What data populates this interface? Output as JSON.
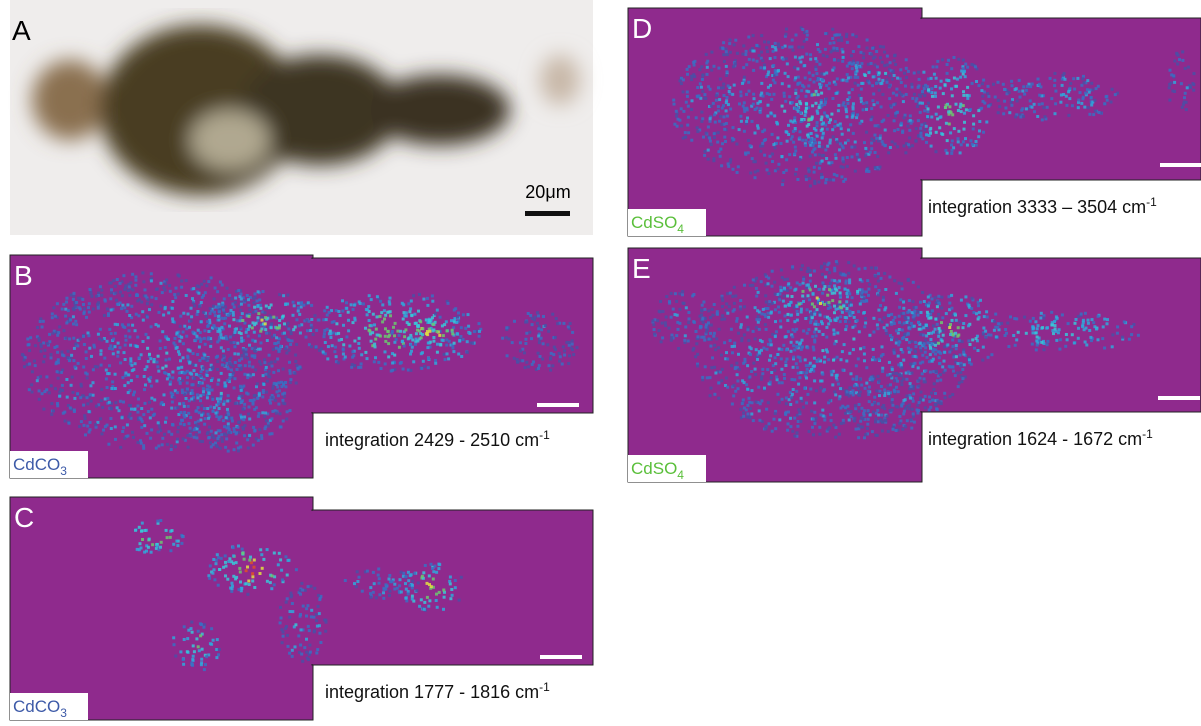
{
  "panels": [
    {
      "letter": "A",
      "scale_bar": "20μm"
    },
    {
      "letter": "B",
      "compound": {
        "base": "CdCO",
        "sub": "3"
      },
      "integration": {
        "text": "integration 2429 - 2510 cm",
        "sup": "-1"
      }
    },
    {
      "letter": "C",
      "compound": {
        "base": "CdCO",
        "sub": "3"
      },
      "integration": {
        "text": "integration 1777 - 1816 cm",
        "sup": "-1"
      }
    },
    {
      "letter": "D",
      "compound": {
        "base": "CdSO",
        "sub": "4"
      },
      "integration": {
        "text": "integration 3333 – 3504 cm",
        "sup": "-1"
      }
    },
    {
      "letter": "E",
      "compound": {
        "base": "CdSO",
        "sub": "4"
      },
      "integration": {
        "text": "integration 1624 - 1672 cm",
        "sup": "-1"
      }
    }
  ]
}
